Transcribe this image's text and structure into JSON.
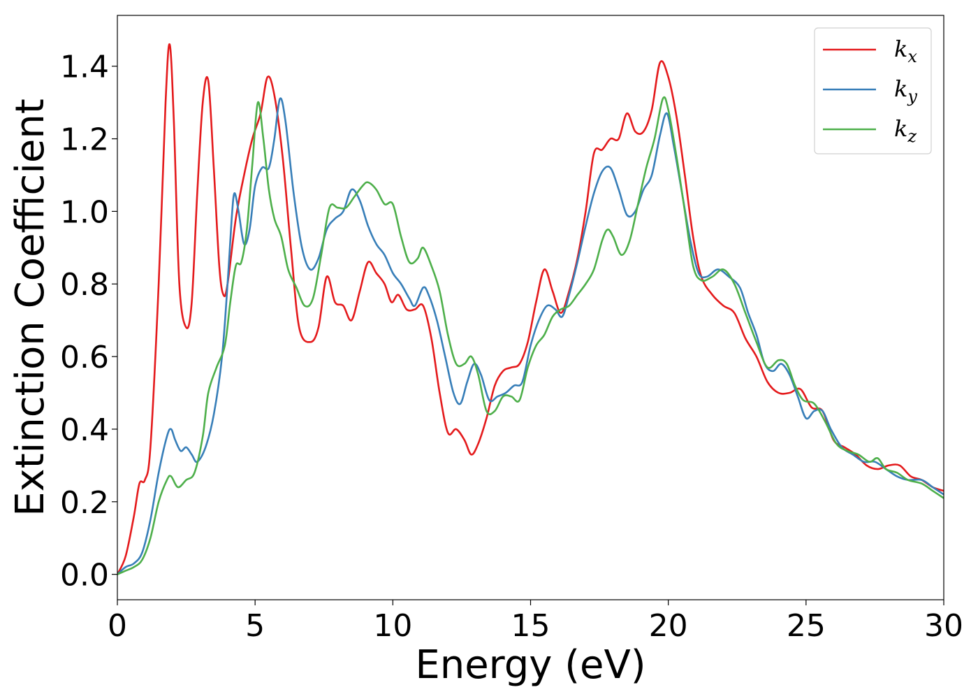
{
  "chart_data": {
    "type": "line",
    "title": "",
    "xlabel": "Energy (eV)",
    "ylabel": "Extinction Coefficient",
    "xlim": [
      0,
      30
    ],
    "ylim": [
      -0.07,
      1.54
    ],
    "xticks": [
      0,
      5,
      10,
      15,
      20,
      25,
      30
    ],
    "yticks": [
      0.0,
      0.2,
      0.4,
      0.6,
      0.8,
      1.0,
      1.2,
      1.4
    ],
    "xtick_labels": [
      "0",
      "5",
      "10",
      "15",
      "20",
      "25",
      "30"
    ],
    "ytick_labels": [
      "0.0",
      "0.2",
      "0.4",
      "0.6",
      "0.8",
      "1.0",
      "1.2",
      "1.4"
    ],
    "grid": false,
    "legend_position": "top-right",
    "series": [
      {
        "name": "k_x",
        "label_base": "k",
        "label_sub": "x",
        "color": "#e41a1c",
        "points": [
          [
            0,
            0
          ],
          [
            0.3,
            0.05
          ],
          [
            0.6,
            0.16
          ],
          [
            0.8,
            0.25
          ],
          [
            1.0,
            0.26
          ],
          [
            1.2,
            0.35
          ],
          [
            1.5,
            0.8
          ],
          [
            1.75,
            1.3
          ],
          [
            1.9,
            1.46
          ],
          [
            2.05,
            1.25
          ],
          [
            2.25,
            0.8
          ],
          [
            2.5,
            0.68
          ],
          [
            2.7,
            0.75
          ],
          [
            2.9,
            1.05
          ],
          [
            3.1,
            1.3
          ],
          [
            3.3,
            1.36
          ],
          [
            3.5,
            1.12
          ],
          [
            3.7,
            0.85
          ],
          [
            3.85,
            0.77
          ],
          [
            4.0,
            0.8
          ],
          [
            4.3,
            0.98
          ],
          [
            4.6,
            1.1
          ],
          [
            4.9,
            1.2
          ],
          [
            5.2,
            1.27
          ],
          [
            5.45,
            1.37
          ],
          [
            5.7,
            1.32
          ],
          [
            6.0,
            1.15
          ],
          [
            6.3,
            0.9
          ],
          [
            6.6,
            0.68
          ],
          [
            7.0,
            0.64
          ],
          [
            7.3,
            0.68
          ],
          [
            7.6,
            0.82
          ],
          [
            7.9,
            0.75
          ],
          [
            8.2,
            0.74
          ],
          [
            8.5,
            0.7
          ],
          [
            8.8,
            0.78
          ],
          [
            9.1,
            0.86
          ],
          [
            9.4,
            0.83
          ],
          [
            9.7,
            0.8
          ],
          [
            9.95,
            0.75
          ],
          [
            10.2,
            0.77
          ],
          [
            10.5,
            0.73
          ],
          [
            10.8,
            0.73
          ],
          [
            11.1,
            0.74
          ],
          [
            11.4,
            0.65
          ],
          [
            11.7,
            0.5
          ],
          [
            12.0,
            0.39
          ],
          [
            12.3,
            0.4
          ],
          [
            12.6,
            0.37
          ],
          [
            12.85,
            0.33
          ],
          [
            13.1,
            0.36
          ],
          [
            13.4,
            0.43
          ],
          [
            13.7,
            0.52
          ],
          [
            14.0,
            0.56
          ],
          [
            14.3,
            0.57
          ],
          [
            14.6,
            0.58
          ],
          [
            14.9,
            0.64
          ],
          [
            15.2,
            0.75
          ],
          [
            15.5,
            0.84
          ],
          [
            15.8,
            0.78
          ],
          [
            16.1,
            0.72
          ],
          [
            16.4,
            0.78
          ],
          [
            16.7,
            0.87
          ],
          [
            17.0,
            1.0
          ],
          [
            17.3,
            1.16
          ],
          [
            17.6,
            1.17
          ],
          [
            17.9,
            1.2
          ],
          [
            18.2,
            1.2
          ],
          [
            18.5,
            1.27
          ],
          [
            18.8,
            1.22
          ],
          [
            19.1,
            1.22
          ],
          [
            19.4,
            1.28
          ],
          [
            19.7,
            1.41
          ],
          [
            20.0,
            1.37
          ],
          [
            20.3,
            1.26
          ],
          [
            20.6,
            1.1
          ],
          [
            20.9,
            0.93
          ],
          [
            21.2,
            0.82
          ],
          [
            21.6,
            0.77
          ],
          [
            22.0,
            0.74
          ],
          [
            22.4,
            0.72
          ],
          [
            22.8,
            0.65
          ],
          [
            23.2,
            0.6
          ],
          [
            23.6,
            0.53
          ],
          [
            24.0,
            0.5
          ],
          [
            24.4,
            0.5
          ],
          [
            24.8,
            0.51
          ],
          [
            25.2,
            0.46
          ],
          [
            25.6,
            0.45
          ],
          [
            26.0,
            0.37
          ],
          [
            26.4,
            0.35
          ],
          [
            26.8,
            0.33
          ],
          [
            27.2,
            0.3
          ],
          [
            27.6,
            0.29
          ],
          [
            28.0,
            0.3
          ],
          [
            28.4,
            0.3
          ],
          [
            28.8,
            0.27
          ],
          [
            29.2,
            0.26
          ],
          [
            29.6,
            0.24
          ],
          [
            30.0,
            0.23
          ]
        ]
      },
      {
        "name": "k_y",
        "label_base": "k",
        "label_sub": "y",
        "color": "#377eb8",
        "points": [
          [
            0,
            0
          ],
          [
            0.3,
            0.02
          ],
          [
            0.6,
            0.03
          ],
          [
            0.9,
            0.06
          ],
          [
            1.2,
            0.15
          ],
          [
            1.5,
            0.28
          ],
          [
            1.8,
            0.38
          ],
          [
            1.95,
            0.4
          ],
          [
            2.1,
            0.37
          ],
          [
            2.3,
            0.34
          ],
          [
            2.5,
            0.35
          ],
          [
            2.7,
            0.33
          ],
          [
            2.9,
            0.31
          ],
          [
            3.2,
            0.35
          ],
          [
            3.5,
            0.44
          ],
          [
            3.8,
            0.6
          ],
          [
            4.0,
            0.8
          ],
          [
            4.15,
            0.98
          ],
          [
            4.25,
            1.05
          ],
          [
            4.4,
            1.0
          ],
          [
            4.6,
            0.91
          ],
          [
            4.8,
            0.95
          ],
          [
            5.0,
            1.07
          ],
          [
            5.25,
            1.12
          ],
          [
            5.5,
            1.12
          ],
          [
            5.7,
            1.2
          ],
          [
            5.9,
            1.31
          ],
          [
            6.1,
            1.25
          ],
          [
            6.4,
            1.05
          ],
          [
            6.7,
            0.9
          ],
          [
            7.0,
            0.84
          ],
          [
            7.3,
            0.87
          ],
          [
            7.6,
            0.95
          ],
          [
            7.9,
            0.98
          ],
          [
            8.2,
            1.0
          ],
          [
            8.5,
            1.06
          ],
          [
            8.8,
            1.03
          ],
          [
            9.1,
            0.96
          ],
          [
            9.4,
            0.91
          ],
          [
            9.7,
            0.88
          ],
          [
            10.0,
            0.83
          ],
          [
            10.3,
            0.8
          ],
          [
            10.6,
            0.76
          ],
          [
            10.8,
            0.74
          ],
          [
            11.1,
            0.79
          ],
          [
            11.3,
            0.77
          ],
          [
            11.6,
            0.7
          ],
          [
            11.9,
            0.6
          ],
          [
            12.2,
            0.5
          ],
          [
            12.45,
            0.47
          ],
          [
            12.7,
            0.53
          ],
          [
            12.95,
            0.58
          ],
          [
            13.2,
            0.55
          ],
          [
            13.5,
            0.48
          ],
          [
            13.8,
            0.49
          ],
          [
            14.1,
            0.5
          ],
          [
            14.4,
            0.52
          ],
          [
            14.7,
            0.53
          ],
          [
            15.0,
            0.63
          ],
          [
            15.3,
            0.7
          ],
          [
            15.6,
            0.74
          ],
          [
            15.9,
            0.73
          ],
          [
            16.15,
            0.71
          ],
          [
            16.4,
            0.77
          ],
          [
            16.7,
            0.86
          ],
          [
            17.0,
            0.96
          ],
          [
            17.3,
            1.05
          ],
          [
            17.6,
            1.11
          ],
          [
            17.9,
            1.12
          ],
          [
            18.2,
            1.06
          ],
          [
            18.5,
            0.99
          ],
          [
            18.8,
            1.0
          ],
          [
            19.1,
            1.06
          ],
          [
            19.4,
            1.1
          ],
          [
            19.7,
            1.21
          ],
          [
            19.95,
            1.27
          ],
          [
            20.2,
            1.18
          ],
          [
            20.5,
            1.05
          ],
          [
            20.8,
            0.92
          ],
          [
            21.1,
            0.83
          ],
          [
            21.4,
            0.82
          ],
          [
            21.8,
            0.84
          ],
          [
            22.2,
            0.82
          ],
          [
            22.6,
            0.79
          ],
          [
            22.9,
            0.72
          ],
          [
            23.2,
            0.66
          ],
          [
            23.5,
            0.58
          ],
          [
            23.8,
            0.56
          ],
          [
            24.1,
            0.58
          ],
          [
            24.4,
            0.55
          ],
          [
            24.7,
            0.49
          ],
          [
            25.0,
            0.43
          ],
          [
            25.3,
            0.45
          ],
          [
            25.6,
            0.45
          ],
          [
            25.9,
            0.4
          ],
          [
            26.3,
            0.35
          ],
          [
            26.7,
            0.33
          ],
          [
            27.1,
            0.31
          ],
          [
            27.5,
            0.31
          ],
          [
            27.9,
            0.29
          ],
          [
            28.3,
            0.27
          ],
          [
            28.7,
            0.26
          ],
          [
            29.2,
            0.26
          ],
          [
            29.6,
            0.24
          ],
          [
            30.0,
            0.22
          ]
        ]
      },
      {
        "name": "k_z",
        "label_base": "k",
        "label_sub": "z",
        "color": "#4daf4a",
        "points": [
          [
            0,
            0
          ],
          [
            0.3,
            0.01
          ],
          [
            0.6,
            0.02
          ],
          [
            0.9,
            0.04
          ],
          [
            1.2,
            0.1
          ],
          [
            1.5,
            0.2
          ],
          [
            1.8,
            0.26
          ],
          [
            1.95,
            0.27
          ],
          [
            2.2,
            0.24
          ],
          [
            2.5,
            0.26
          ],
          [
            2.8,
            0.28
          ],
          [
            3.1,
            0.38
          ],
          [
            3.3,
            0.5
          ],
          [
            3.6,
            0.57
          ],
          [
            3.9,
            0.63
          ],
          [
            4.1,
            0.75
          ],
          [
            4.3,
            0.85
          ],
          [
            4.5,
            0.86
          ],
          [
            4.7,
            0.95
          ],
          [
            4.9,
            1.13
          ],
          [
            5.1,
            1.3
          ],
          [
            5.3,
            1.2
          ],
          [
            5.5,
            1.06
          ],
          [
            5.7,
            0.98
          ],
          [
            5.95,
            0.93
          ],
          [
            6.2,
            0.84
          ],
          [
            6.5,
            0.79
          ],
          [
            6.8,
            0.74
          ],
          [
            7.1,
            0.76
          ],
          [
            7.4,
            0.88
          ],
          [
            7.7,
            1.01
          ],
          [
            8.0,
            1.01
          ],
          [
            8.3,
            1.01
          ],
          [
            8.6,
            1.04
          ],
          [
            8.9,
            1.07
          ],
          [
            9.1,
            1.08
          ],
          [
            9.4,
            1.06
          ],
          [
            9.7,
            1.02
          ],
          [
            10.0,
            1.02
          ],
          [
            10.3,
            0.93
          ],
          [
            10.6,
            0.86
          ],
          [
            10.9,
            0.87
          ],
          [
            11.1,
            0.9
          ],
          [
            11.4,
            0.85
          ],
          [
            11.7,
            0.78
          ],
          [
            12.0,
            0.66
          ],
          [
            12.3,
            0.58
          ],
          [
            12.6,
            0.58
          ],
          [
            12.85,
            0.6
          ],
          [
            13.1,
            0.55
          ],
          [
            13.4,
            0.45
          ],
          [
            13.7,
            0.45
          ],
          [
            14.0,
            0.49
          ],
          [
            14.3,
            0.49
          ],
          [
            14.6,
            0.48
          ],
          [
            14.9,
            0.57
          ],
          [
            15.2,
            0.63
          ],
          [
            15.5,
            0.66
          ],
          [
            15.8,
            0.71
          ],
          [
            16.1,
            0.73
          ],
          [
            16.4,
            0.74
          ],
          [
            16.7,
            0.77
          ],
          [
            17.0,
            0.8
          ],
          [
            17.3,
            0.84
          ],
          [
            17.6,
            0.92
          ],
          [
            17.8,
            0.95
          ],
          [
            18.0,
            0.93
          ],
          [
            18.3,
            0.88
          ],
          [
            18.6,
            0.92
          ],
          [
            18.9,
            1.02
          ],
          [
            19.2,
            1.12
          ],
          [
            19.5,
            1.2
          ],
          [
            19.8,
            1.31
          ],
          [
            20.0,
            1.28
          ],
          [
            20.3,
            1.15
          ],
          [
            20.6,
            1.0
          ],
          [
            20.9,
            0.85
          ],
          [
            21.2,
            0.81
          ],
          [
            21.6,
            0.82
          ],
          [
            22.0,
            0.84
          ],
          [
            22.4,
            0.8
          ],
          [
            22.8,
            0.72
          ],
          [
            23.2,
            0.64
          ],
          [
            23.6,
            0.57
          ],
          [
            24.0,
            0.59
          ],
          [
            24.3,
            0.58
          ],
          [
            24.6,
            0.52
          ],
          [
            24.9,
            0.48
          ],
          [
            25.3,
            0.47
          ],
          [
            25.7,
            0.42
          ],
          [
            26.1,
            0.36
          ],
          [
            26.5,
            0.34
          ],
          [
            26.9,
            0.33
          ],
          [
            27.3,
            0.31
          ],
          [
            27.6,
            0.32
          ],
          [
            27.9,
            0.29
          ],
          [
            28.3,
            0.28
          ],
          [
            28.7,
            0.26
          ],
          [
            29.2,
            0.25
          ],
          [
            29.6,
            0.23
          ],
          [
            30.0,
            0.21
          ]
        ]
      }
    ]
  }
}
